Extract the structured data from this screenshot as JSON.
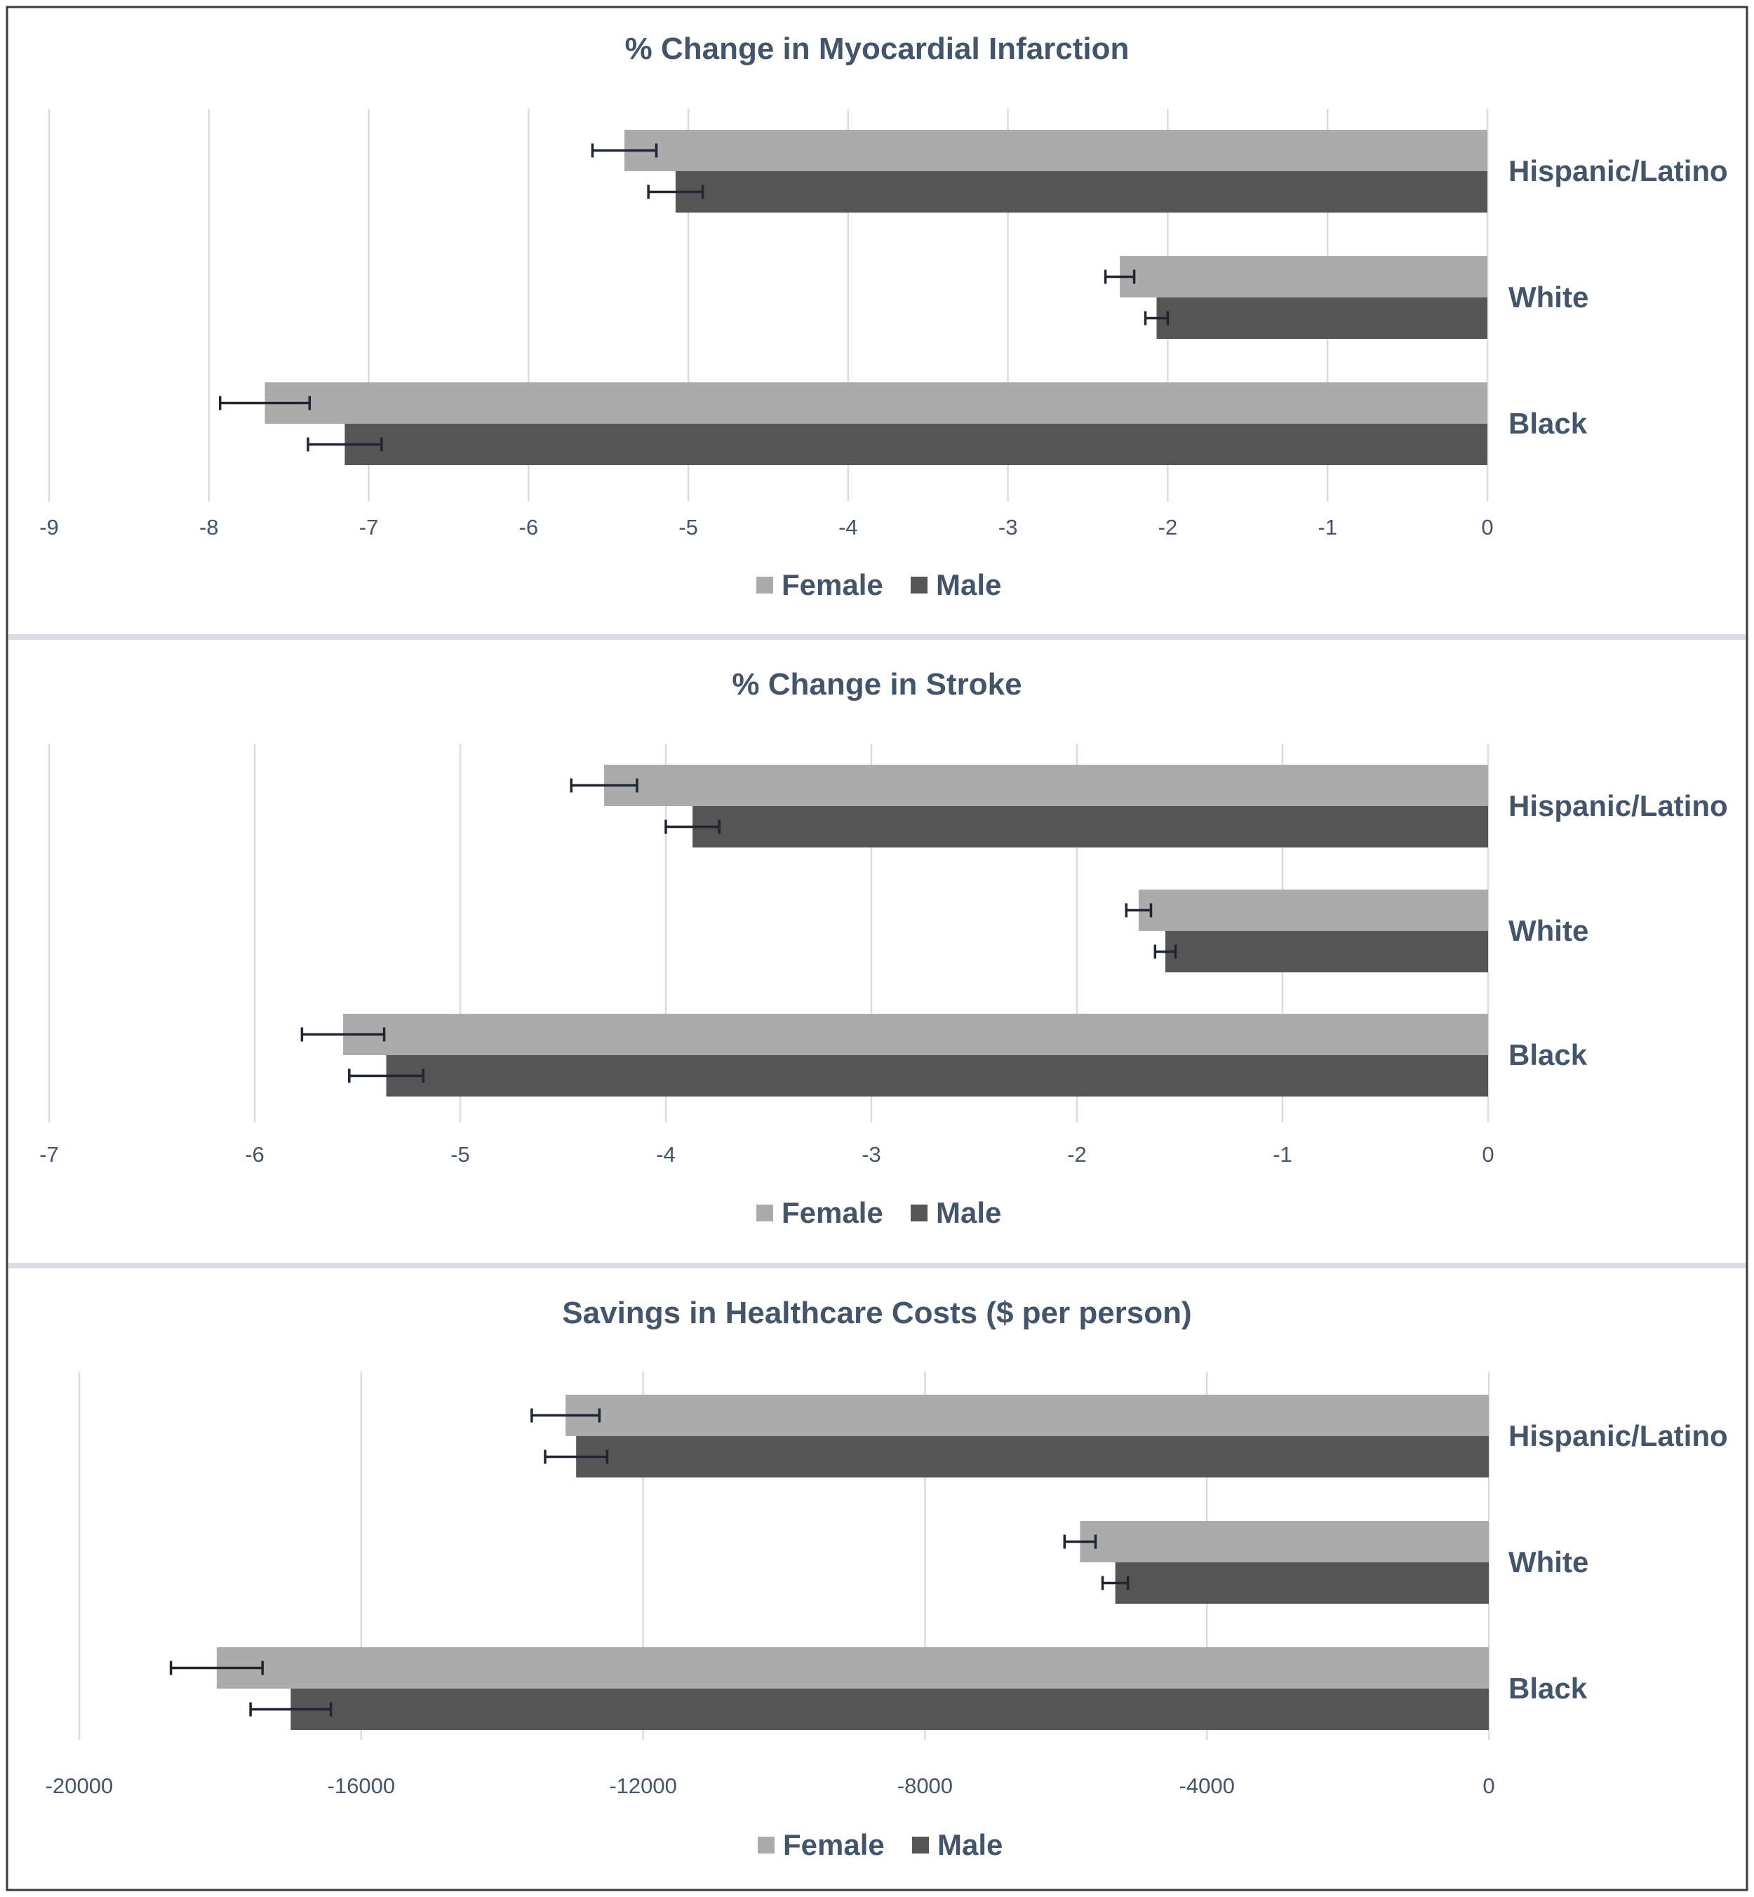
{
  "colors": {
    "female": "#ababab",
    "male": "#555555",
    "text": "#44546a",
    "grid": "#dcdcdc",
    "error_bar": "#1f2633"
  },
  "legend": {
    "placement": "bottom-center"
  },
  "chart_data": [
    {
      "type": "bar",
      "orientation": "horizontal",
      "title": "% Change in Myocardial Infarction",
      "categories": [
        "Hispanic/Latino",
        "White",
        "Black"
      ],
      "xlim": [
        -9,
        0
      ],
      "ticks": [
        -9,
        -8,
        -7,
        -6,
        -5,
        -4,
        -3,
        -2,
        -1,
        0
      ],
      "tick_labels": [
        "-9",
        "-8",
        "-7",
        "-6",
        "-5",
        "-4",
        "-3",
        "-2",
        "-1",
        "0"
      ],
      "grid": true,
      "series": [
        {
          "name": "Female",
          "values": [
            -5.4,
            -2.3,
            -7.65
          ],
          "error": [
            0.2,
            0.09,
            0.28
          ]
        },
        {
          "name": "Male",
          "values": [
            -5.08,
            -2.07,
            -7.15
          ],
          "error": [
            0.17,
            0.07,
            0.23
          ]
        }
      ]
    },
    {
      "type": "bar",
      "orientation": "horizontal",
      "title": "% Change in Stroke",
      "categories": [
        "Hispanic/Latino",
        "White",
        "Black"
      ],
      "xlim": [
        -7,
        0
      ],
      "ticks": [
        -7,
        -6,
        -5,
        -4,
        -3,
        -2,
        -1,
        0
      ],
      "tick_labels": [
        "-7",
        "-6",
        "-5",
        "-4",
        "-3",
        "-2",
        "-1",
        "0"
      ],
      "grid": true,
      "series": [
        {
          "name": "Female",
          "values": [
            -4.3,
            -1.7,
            -5.57
          ],
          "error": [
            0.16,
            0.06,
            0.2
          ]
        },
        {
          "name": "Male",
          "values": [
            -3.87,
            -1.57,
            -5.36
          ],
          "error": [
            0.13,
            0.05,
            0.18
          ]
        }
      ]
    },
    {
      "type": "bar",
      "orientation": "horizontal",
      "title": "Savings in Healthcare Costs ($ per person)",
      "categories": [
        "Hispanic/Latino",
        "White",
        "Black"
      ],
      "xlim": [
        -20000,
        0
      ],
      "ticks": [
        -20000,
        -16000,
        -12000,
        -8000,
        -4000,
        0
      ],
      "tick_labels": [
        "-20000",
        "-16000",
        "-12000",
        "-8000",
        "-4000",
        "0"
      ],
      "grid": true,
      "series": [
        {
          "name": "Female",
          "values": [
            -13100,
            -5800,
            -18050
          ],
          "error": [
            480,
            220,
            650
          ]
        },
        {
          "name": "Male",
          "values": [
            -12950,
            -5300,
            -17000
          ],
          "error": [
            440,
            180,
            570
          ]
        }
      ]
    }
  ]
}
